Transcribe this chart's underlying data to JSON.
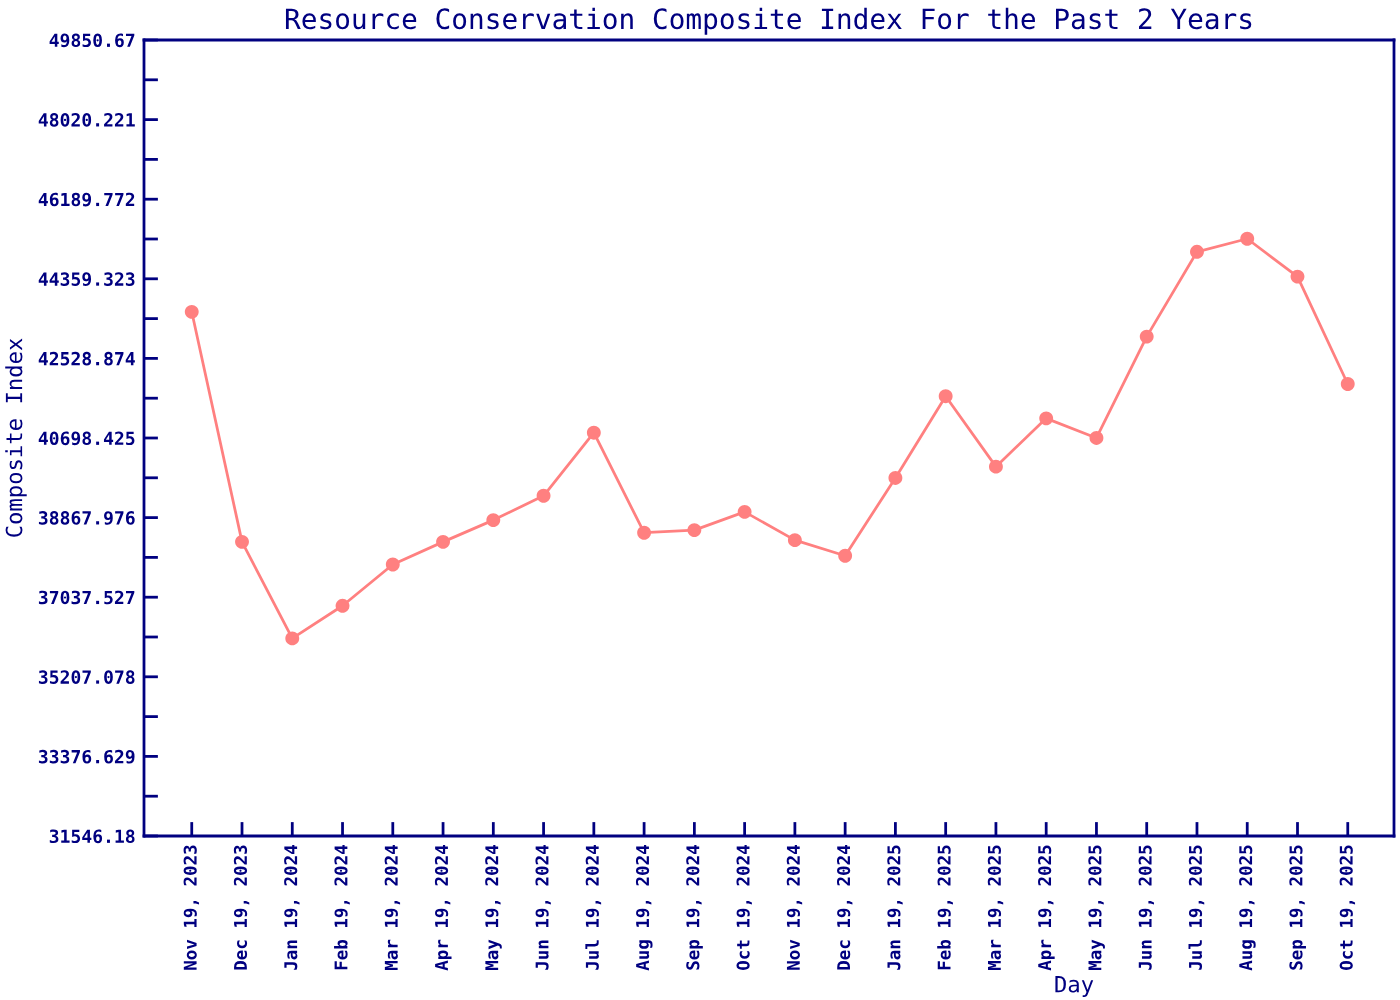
{
  "chart_data": {
    "type": "line",
    "title": "Resource Conservation Composite Index For the Past 2 Years",
    "xlabel": "Day",
    "ylabel": "Composite Index",
    "categories": [
      "Nov 19, 2023",
      "Dec 19, 2023",
      "Jan 19, 2024",
      "Feb 19, 2024",
      "Mar 19, 2024",
      "Apr 19, 2024",
      "May 19, 2024",
      "Jun 19, 2024",
      "Jul 19, 2024",
      "Aug 19, 2024",
      "Sep 19, 2024",
      "Oct 19, 2024",
      "Nov 19, 2024",
      "Dec 19, 2024",
      "Jan 19, 2025",
      "Feb 19, 2025",
      "Mar 19, 2025",
      "Apr 19, 2025",
      "May 19, 2025",
      "Jun 19, 2025",
      "Jul 19, 2025",
      "Aug 19, 2025",
      "Sep 19, 2025",
      "Oct 19, 2025"
    ],
    "series": [
      {
        "color": "#ff8080",
        "values": [
          43600,
          38310,
          36090,
          36840,
          37790,
          38310,
          38810,
          39370,
          40820,
          38520,
          38580,
          39000,
          38350,
          37990,
          39780,
          41660,
          40040,
          41150,
          40700,
          43030,
          44980,
          45280,
          44410,
          41940
        ]
      }
    ],
    "ylim": [
      31546.18,
      49850.67
    ],
    "yticks": [
      31546.18,
      {
        "value": 32461.4045,
        "label": null
      },
      33376.629,
      {
        "value": 34291.8535,
        "label": null
      },
      35207.078,
      {
        "value": 36122.3025,
        "label": null
      },
      37037.527,
      {
        "value": 37952.7515,
        "label": null
      },
      38867.976,
      {
        "value": 39783.2005,
        "label": null
      },
      40698.425,
      {
        "value": 41613.6495,
        "label": null
      },
      42528.874,
      {
        "value": 43444.0985,
        "label": null
      },
      44359.323,
      {
        "value": 45274.5475,
        "label": null
      },
      46189.772,
      {
        "value": 47104.9965,
        "label": null
      },
      48020.221,
      {
        "value": 48935.4455,
        "label": null
      },
      49850.67
    ],
    "marker": "circle",
    "line_style": "solid"
  }
}
